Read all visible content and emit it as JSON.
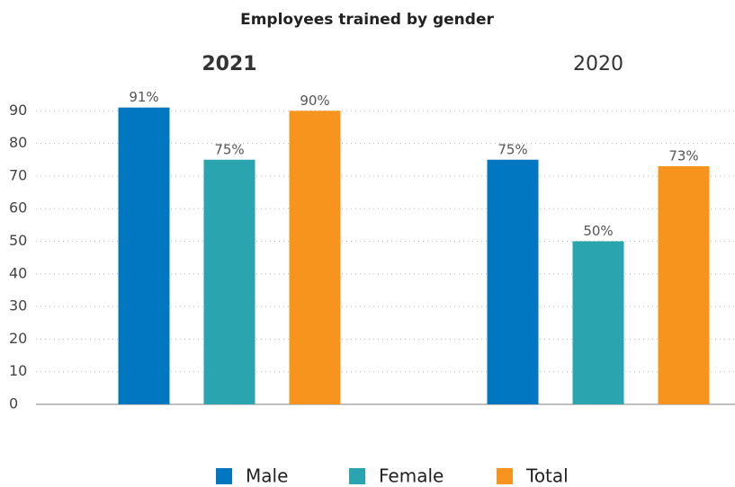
{
  "chart_data": {
    "type": "bar",
    "title": "Employees trained by gender",
    "categories": [
      "2021",
      "2020"
    ],
    "series": [
      {
        "name": "Male",
        "color": "#0077c0",
        "values": [
          91,
          75
        ],
        "value_labels": [
          "91%",
          "75%"
        ]
      },
      {
        "name": "Female",
        "color": "#2aa5b0",
        "values": [
          75,
          50
        ],
        "value_labels": [
          "75%",
          "50%"
        ]
      },
      {
        "name": "Total",
        "color": "#f7941d",
        "values": [
          90,
          73
        ],
        "value_labels": [
          "90%",
          "73%"
        ]
      }
    ],
    "ylim": [
      0,
      100
    ],
    "yticks": [
      0,
      10,
      20,
      30,
      40,
      50,
      60,
      70,
      80,
      90
    ],
    "grid": true,
    "legend": "bottom"
  }
}
